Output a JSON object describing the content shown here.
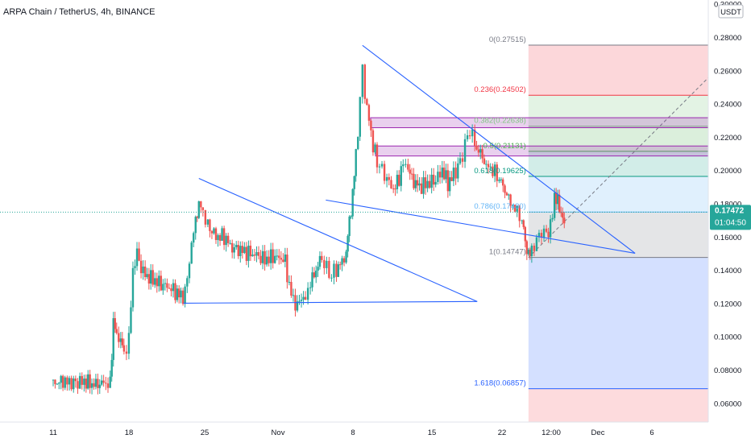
{
  "header": {
    "title": "ARPA Chain / TetherUS, 4h, BINANCE"
  },
  "axis": {
    "currency": "USDT",
    "price_ticks": [
      "0.30000",
      "0.28000",
      "0.26000",
      "0.24000",
      "0.22000",
      "0.20000",
      "0.18000",
      "0.16000",
      "0.14000",
      "0.12000",
      "0.10000",
      "0.08000",
      "0.06000"
    ],
    "time_ticks": [
      "11",
      "18",
      "25",
      "Nov",
      "8",
      "15",
      "22",
      "12:00",
      "Dec",
      "6"
    ]
  },
  "current_price": {
    "value": "0.17472",
    "countdown": "01:04:50",
    "color": "#26a69a"
  },
  "fib_levels": [
    {
      "label": "0(0.27515)",
      "price": 0.27515,
      "color": "#787b86"
    },
    {
      "label": "0.236(0.24502)",
      "price": 0.24502,
      "color": "#f23645"
    },
    {
      "label": "0.382(0.22638)",
      "price": 0.22638,
      "color": "#81c784"
    },
    {
      "label": "0.5(0.21131)",
      "price": 0.21131,
      "color": "#4caf50"
    },
    {
      "label": "0.618(0.19625)",
      "price": 0.19625,
      "color": "#089981"
    },
    {
      "label": "0.786(0.17480)",
      "price": 0.1748,
      "color": "#64b5f6"
    },
    {
      "label": "1(0.14747)",
      "price": 0.14747,
      "color": "#787b86"
    },
    {
      "label": "1.618(0.06857)",
      "price": 0.06857,
      "color": "#2962ff"
    }
  ],
  "chart_data": {
    "type": "candlestick",
    "symbol": "ARPA Chain / TetherUS",
    "interval": "4h",
    "exchange": "BINANCE",
    "ylim": [
      0.05,
      0.3
    ],
    "candle_colors": {
      "up": "#26a69a",
      "down": "#ef5350"
    },
    "close_path": [
      [
        0,
        0.072
      ],
      [
        1.2,
        0.073
      ],
      [
        2.5,
        0.072
      ],
      [
        3.8,
        0.073
      ],
      [
        5,
        0.071
      ],
      [
        6.2,
        0.072
      ],
      [
        7,
        0.071
      ],
      [
        7.4,
        0.11
      ],
      [
        7.8,
        0.1
      ],
      [
        8.3,
        0.098
      ],
      [
        8.7,
        0.09
      ],
      [
        9.3,
        0.098
      ],
      [
        9.8,
        0.14
      ],
      [
        10.3,
        0.15
      ],
      [
        10.8,
        0.141
      ],
      [
        11.3,
        0.137
      ],
      [
        12,
        0.135
      ],
      [
        13,
        0.132
      ],
      [
        14,
        0.13
      ],
      [
        15,
        0.127
      ],
      [
        15.7,
        0.124
      ],
      [
        16.2,
        0.126
      ],
      [
        17.0,
        0.155
      ],
      [
        17.5,
        0.17
      ],
      [
        17.9,
        0.18
      ],
      [
        18.4,
        0.175
      ],
      [
        19,
        0.167
      ],
      [
        20,
        0.16
      ],
      [
        21,
        0.16
      ],
      [
        22,
        0.153
      ],
      [
        23,
        0.152
      ],
      [
        24,
        0.15
      ],
      [
        25,
        0.149
      ],
      [
        26,
        0.146
      ],
      [
        27,
        0.148
      ],
      [
        28,
        0.147
      ],
      [
        28.5,
        0.145
      ],
      [
        29.0,
        0.13
      ],
      [
        29.5,
        0.122
      ],
      [
        30,
        0.118
      ],
      [
        30.5,
        0.124
      ],
      [
        31,
        0.122
      ],
      [
        31.6,
        0.132
      ],
      [
        32.3,
        0.14
      ],
      [
        33,
        0.148
      ],
      [
        33.6,
        0.14
      ],
      [
        34.2,
        0.137
      ],
      [
        34.8,
        0.14
      ],
      [
        35.5,
        0.145
      ],
      [
        36,
        0.15
      ],
      [
        36.4,
        0.17
      ],
      [
        36.8,
        0.185
      ],
      [
        37.2,
        0.21
      ],
      [
        37.7,
        0.24
      ],
      [
        38.0,
        0.265
      ],
      [
        38.3,
        0.245
      ],
      [
        38.8,
        0.23
      ],
      [
        39.3,
        0.215
      ],
      [
        39.8,
        0.205
      ],
      [
        40.4,
        0.2
      ],
      [
        41,
        0.195
      ],
      [
        41.8,
        0.188
      ],
      [
        42.5,
        0.195
      ],
      [
        43,
        0.205
      ],
      [
        43.6,
        0.2
      ],
      [
        44.3,
        0.193
      ],
      [
        45,
        0.19
      ],
      [
        46,
        0.192
      ],
      [
        47,
        0.194
      ],
      [
        47.8,
        0.2
      ],
      [
        48.5,
        0.192
      ],
      [
        49.2,
        0.197
      ],
      [
        50,
        0.205
      ],
      [
        50.6,
        0.215
      ],
      [
        51.2,
        0.225
      ],
      [
        51.8,
        0.215
      ],
      [
        52.5,
        0.21
      ],
      [
        53.2,
        0.203
      ],
      [
        54,
        0.2
      ],
      [
        54.8,
        0.195
      ],
      [
        55.5,
        0.188
      ],
      [
        56.2,
        0.18
      ],
      [
        57,
        0.175
      ],
      [
        57.6,
        0.17
      ],
      [
        58.0,
        0.158
      ],
      [
        58.4,
        0.148
      ],
      [
        58.8,
        0.152
      ],
      [
        59.4,
        0.158
      ],
      [
        60,
        0.163
      ],
      [
        60.6,
        0.162
      ],
      [
        61.1,
        0.165
      ],
      [
        61.6,
        0.185
      ],
      [
        62.0,
        0.18
      ],
      [
        62.4,
        0.175
      ],
      [
        62.8,
        0.168
      ]
    ],
    "trendlines": [
      {
        "points": [
          [
            16.0,
            0.12
          ],
          [
            52.1,
            0.121
          ]
        ]
      },
      {
        "points": [
          [
            17.9,
            0.195
          ],
          [
            52.1,
            0.121
          ]
        ]
      },
      {
        "points": [
          [
            33.5,
            0.182
          ],
          [
            71.5,
            0.15
          ]
        ]
      },
      {
        "points": [
          [
            38.0,
            0.275
          ],
          [
            71.5,
            0.15
          ]
        ]
      }
    ],
    "rectangles": [
      {
        "price_top": 0.2315,
        "price_bottom": 0.2255,
        "x_start": 39.0,
        "x_end": 86.5
      },
      {
        "price_top": 0.2145,
        "price_bottom": 0.2085,
        "x_start": 39.6,
        "x_end": 88.0
      }
    ],
    "fib_range": {
      "x_start": 58.4,
      "x_end": 84.5
    }
  }
}
